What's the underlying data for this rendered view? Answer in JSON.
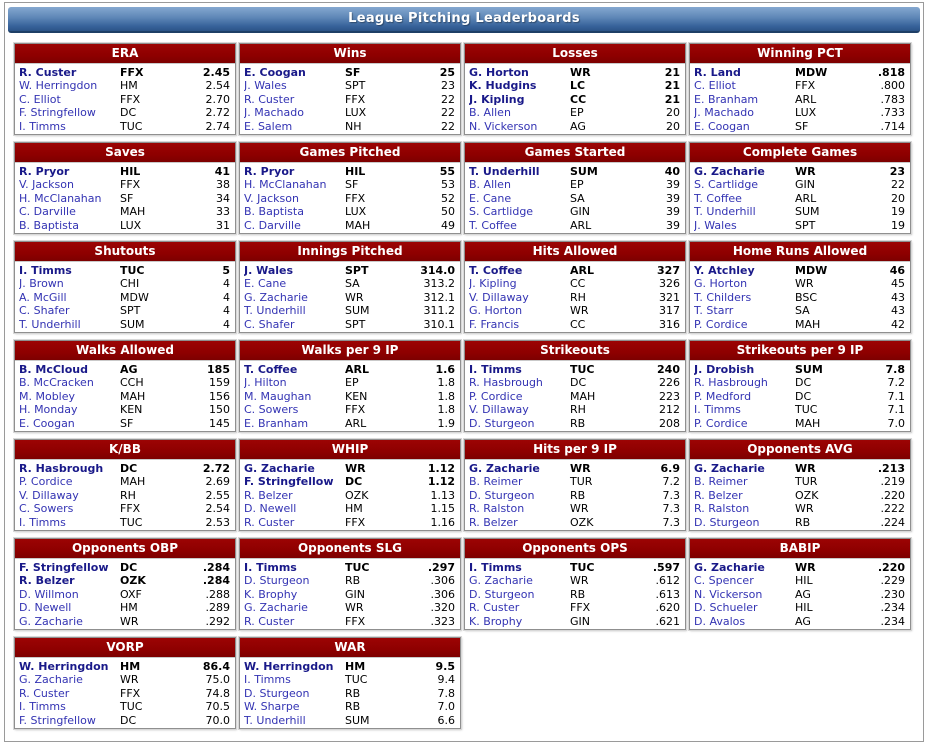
{
  "title": "League Pitching Leaderboards",
  "boards": [
    {
      "title": "ERA",
      "rows": [
        {
          "name": "R. Custer",
          "team": "FFX",
          "value": "2.45",
          "bold": true
        },
        {
          "name": "W. Herringdon",
          "team": "HM",
          "value": "2.54",
          "bold": false
        },
        {
          "name": "C. Elliot",
          "team": "FFX",
          "value": "2.70",
          "bold": false
        },
        {
          "name": "F. Stringfellow",
          "team": "DC",
          "value": "2.72",
          "bold": false
        },
        {
          "name": "I. Timms",
          "team": "TUC",
          "value": "2.74",
          "bold": false
        }
      ]
    },
    {
      "title": "Wins",
      "rows": [
        {
          "name": "E. Coogan",
          "team": "SF",
          "value": "25",
          "bold": true
        },
        {
          "name": "J. Wales",
          "team": "SPT",
          "value": "23",
          "bold": false
        },
        {
          "name": "R. Custer",
          "team": "FFX",
          "value": "22",
          "bold": false
        },
        {
          "name": "J. Machado",
          "team": "LUX",
          "value": "22",
          "bold": false
        },
        {
          "name": "E. Salem",
          "team": "NH",
          "value": "22",
          "bold": false
        }
      ]
    },
    {
      "title": "Losses",
      "rows": [
        {
          "name": "G. Horton",
          "team": "WR",
          "value": "21",
          "bold": true
        },
        {
          "name": "K. Hudgins",
          "team": "LC",
          "value": "21",
          "bold": true
        },
        {
          "name": "J. Kipling",
          "team": "CC",
          "value": "21",
          "bold": true
        },
        {
          "name": "B. Allen",
          "team": "EP",
          "value": "20",
          "bold": false
        },
        {
          "name": "N. Vickerson",
          "team": "AG",
          "value": "20",
          "bold": false
        }
      ]
    },
    {
      "title": "Winning PCT",
      "rows": [
        {
          "name": "R. Land",
          "team": "MDW",
          "value": ".818",
          "bold": true
        },
        {
          "name": "C. Elliot",
          "team": "FFX",
          "value": ".800",
          "bold": false
        },
        {
          "name": "E. Branham",
          "team": "ARL",
          "value": ".783",
          "bold": false
        },
        {
          "name": "J. Machado",
          "team": "LUX",
          "value": ".733",
          "bold": false
        },
        {
          "name": "E. Coogan",
          "team": "SF",
          "value": ".714",
          "bold": false
        }
      ]
    },
    {
      "title": "Saves",
      "rows": [
        {
          "name": "R. Pryor",
          "team": "HIL",
          "value": "41",
          "bold": true
        },
        {
          "name": "V. Jackson",
          "team": "FFX",
          "value": "38",
          "bold": false
        },
        {
          "name": "H. McClanahan",
          "team": "SF",
          "value": "34",
          "bold": false
        },
        {
          "name": "C. Darville",
          "team": "MAH",
          "value": "33",
          "bold": false
        },
        {
          "name": "B. Baptista",
          "team": "LUX",
          "value": "31",
          "bold": false
        }
      ]
    },
    {
      "title": "Games Pitched",
      "rows": [
        {
          "name": "R. Pryor",
          "team": "HIL",
          "value": "55",
          "bold": true
        },
        {
          "name": "H. McClanahan",
          "team": "SF",
          "value": "53",
          "bold": false
        },
        {
          "name": "V. Jackson",
          "team": "FFX",
          "value": "52",
          "bold": false
        },
        {
          "name": "B. Baptista",
          "team": "LUX",
          "value": "50",
          "bold": false
        },
        {
          "name": "C. Darville",
          "team": "MAH",
          "value": "49",
          "bold": false
        }
      ]
    },
    {
      "title": "Games Started",
      "rows": [
        {
          "name": "T. Underhill",
          "team": "SUM",
          "value": "40",
          "bold": true
        },
        {
          "name": "B. Allen",
          "team": "EP",
          "value": "39",
          "bold": false
        },
        {
          "name": "E. Cane",
          "team": "SA",
          "value": "39",
          "bold": false
        },
        {
          "name": "S. Cartlidge",
          "team": "GIN",
          "value": "39",
          "bold": false
        },
        {
          "name": "T. Coffee",
          "team": "ARL",
          "value": "39",
          "bold": false
        }
      ]
    },
    {
      "title": "Complete Games",
      "rows": [
        {
          "name": "G. Zacharie",
          "team": "WR",
          "value": "23",
          "bold": true
        },
        {
          "name": "S. Cartlidge",
          "team": "GIN",
          "value": "22",
          "bold": false
        },
        {
          "name": "T. Coffee",
          "team": "ARL",
          "value": "20",
          "bold": false
        },
        {
          "name": "T. Underhill",
          "team": "SUM",
          "value": "19",
          "bold": false
        },
        {
          "name": "J. Wales",
          "team": "SPT",
          "value": "19",
          "bold": false
        }
      ]
    },
    {
      "title": "Shutouts",
      "rows": [
        {
          "name": "I. Timms",
          "team": "TUC",
          "value": "5",
          "bold": true
        },
        {
          "name": "J. Brown",
          "team": "CHI",
          "value": "4",
          "bold": false
        },
        {
          "name": "A. McGill",
          "team": "MDW",
          "value": "4",
          "bold": false
        },
        {
          "name": "C. Shafer",
          "team": "SPT",
          "value": "4",
          "bold": false
        },
        {
          "name": "T. Underhill",
          "team": "SUM",
          "value": "4",
          "bold": false
        }
      ]
    },
    {
      "title": "Innings Pitched",
      "rows": [
        {
          "name": "J. Wales",
          "team": "SPT",
          "value": "314.0",
          "bold": true
        },
        {
          "name": "E. Cane",
          "team": "SA",
          "value": "313.2",
          "bold": false
        },
        {
          "name": "G. Zacharie",
          "team": "WR",
          "value": "312.1",
          "bold": false
        },
        {
          "name": "T. Underhill",
          "team": "SUM",
          "value": "311.2",
          "bold": false
        },
        {
          "name": "C. Shafer",
          "team": "SPT",
          "value": "310.1",
          "bold": false
        }
      ]
    },
    {
      "title": "Hits Allowed",
      "rows": [
        {
          "name": "T. Coffee",
          "team": "ARL",
          "value": "327",
          "bold": true
        },
        {
          "name": "J. Kipling",
          "team": "CC",
          "value": "326",
          "bold": false
        },
        {
          "name": "V. Dillaway",
          "team": "RH",
          "value": "321",
          "bold": false
        },
        {
          "name": "G. Horton",
          "team": "WR",
          "value": "317",
          "bold": false
        },
        {
          "name": "F. Francis",
          "team": "CC",
          "value": "316",
          "bold": false
        }
      ]
    },
    {
      "title": "Home Runs Allowed",
      "rows": [
        {
          "name": "Y. Atchley",
          "team": "MDW",
          "value": "46",
          "bold": true
        },
        {
          "name": "G. Horton",
          "team": "WR",
          "value": "45",
          "bold": false
        },
        {
          "name": "T. Childers",
          "team": "BSC",
          "value": "43",
          "bold": false
        },
        {
          "name": "T. Starr",
          "team": "SA",
          "value": "43",
          "bold": false
        },
        {
          "name": "P. Cordice",
          "team": "MAH",
          "value": "42",
          "bold": false
        }
      ]
    },
    {
      "title": "Walks Allowed",
      "rows": [
        {
          "name": "B. McCloud",
          "team": "AG",
          "value": "185",
          "bold": true
        },
        {
          "name": "B. McCracken",
          "team": "CCH",
          "value": "159",
          "bold": false
        },
        {
          "name": "M. Mobley",
          "team": "MAH",
          "value": "156",
          "bold": false
        },
        {
          "name": "H. Monday",
          "team": "KEN",
          "value": "150",
          "bold": false
        },
        {
          "name": "E. Coogan",
          "team": "SF",
          "value": "145",
          "bold": false
        }
      ]
    },
    {
      "title": "Walks per 9 IP",
      "rows": [
        {
          "name": "T. Coffee",
          "team": "ARL",
          "value": "1.6",
          "bold": true
        },
        {
          "name": "J. Hilton",
          "team": "EP",
          "value": "1.8",
          "bold": false
        },
        {
          "name": "M. Maughan",
          "team": "KEN",
          "value": "1.8",
          "bold": false
        },
        {
          "name": "C. Sowers",
          "team": "FFX",
          "value": "1.8",
          "bold": false
        },
        {
          "name": "E. Branham",
          "team": "ARL",
          "value": "1.9",
          "bold": false
        }
      ]
    },
    {
      "title": "Strikeouts",
      "rows": [
        {
          "name": "I. Timms",
          "team": "TUC",
          "value": "240",
          "bold": true
        },
        {
          "name": "R. Hasbrough",
          "team": "DC",
          "value": "226",
          "bold": false
        },
        {
          "name": "P. Cordice",
          "team": "MAH",
          "value": "223",
          "bold": false
        },
        {
          "name": "V. Dillaway",
          "team": "RH",
          "value": "212",
          "bold": false
        },
        {
          "name": "D. Sturgeon",
          "team": "RB",
          "value": "208",
          "bold": false
        }
      ]
    },
    {
      "title": "Strikeouts per 9 IP",
      "rows": [
        {
          "name": "J. Drobish",
          "team": "SUM",
          "value": "7.8",
          "bold": true
        },
        {
          "name": "R. Hasbrough",
          "team": "DC",
          "value": "7.2",
          "bold": false
        },
        {
          "name": "P. Medford",
          "team": "DC",
          "value": "7.1",
          "bold": false
        },
        {
          "name": "I. Timms",
          "team": "TUC",
          "value": "7.1",
          "bold": false
        },
        {
          "name": "P. Cordice",
          "team": "MAH",
          "value": "7.0",
          "bold": false
        }
      ]
    },
    {
      "title": "K/BB",
      "rows": [
        {
          "name": "R. Hasbrough",
          "team": "DC",
          "value": "2.72",
          "bold": true
        },
        {
          "name": "P. Cordice",
          "team": "MAH",
          "value": "2.69",
          "bold": false
        },
        {
          "name": "V. Dillaway",
          "team": "RH",
          "value": "2.55",
          "bold": false
        },
        {
          "name": "C. Sowers",
          "team": "FFX",
          "value": "2.54",
          "bold": false
        },
        {
          "name": "I. Timms",
          "team": "TUC",
          "value": "2.53",
          "bold": false
        }
      ]
    },
    {
      "title": "WHIP",
      "rows": [
        {
          "name": "G. Zacharie",
          "team": "WR",
          "value": "1.12",
          "bold": true
        },
        {
          "name": "F. Stringfellow",
          "team": "DC",
          "value": "1.12",
          "bold": true
        },
        {
          "name": "R. Belzer",
          "team": "OZK",
          "value": "1.13",
          "bold": false
        },
        {
          "name": "D. Newell",
          "team": "HM",
          "value": "1.15",
          "bold": false
        },
        {
          "name": "R. Custer",
          "team": "FFX",
          "value": "1.16",
          "bold": false
        }
      ]
    },
    {
      "title": "Hits per 9 IP",
      "rows": [
        {
          "name": "G. Zacharie",
          "team": "WR",
          "value": "6.9",
          "bold": true
        },
        {
          "name": "B. Reimer",
          "team": "TUR",
          "value": "7.2",
          "bold": false
        },
        {
          "name": "D. Sturgeon",
          "team": "RB",
          "value": "7.3",
          "bold": false
        },
        {
          "name": "R. Ralston",
          "team": "WR",
          "value": "7.3",
          "bold": false
        },
        {
          "name": "R. Belzer",
          "team": "OZK",
          "value": "7.3",
          "bold": false
        }
      ]
    },
    {
      "title": "Opponents AVG",
      "rows": [
        {
          "name": "G. Zacharie",
          "team": "WR",
          "value": ".213",
          "bold": true
        },
        {
          "name": "B. Reimer",
          "team": "TUR",
          "value": ".219",
          "bold": false
        },
        {
          "name": "R. Belzer",
          "team": "OZK",
          "value": ".220",
          "bold": false
        },
        {
          "name": "R. Ralston",
          "team": "WR",
          "value": ".222",
          "bold": false
        },
        {
          "name": "D. Sturgeon",
          "team": "RB",
          "value": ".224",
          "bold": false
        }
      ]
    },
    {
      "title": "Opponents OBP",
      "rows": [
        {
          "name": "F. Stringfellow",
          "team": "DC",
          "value": ".284",
          "bold": true
        },
        {
          "name": "R. Belzer",
          "team": "OZK",
          "value": ".284",
          "bold": true
        },
        {
          "name": "D. Willmon",
          "team": "OXF",
          "value": ".288",
          "bold": false
        },
        {
          "name": "D. Newell",
          "team": "HM",
          "value": ".289",
          "bold": false
        },
        {
          "name": "G. Zacharie",
          "team": "WR",
          "value": ".292",
          "bold": false
        }
      ]
    },
    {
      "title": "Opponents SLG",
      "rows": [
        {
          "name": "I. Timms",
          "team": "TUC",
          "value": ".297",
          "bold": true
        },
        {
          "name": "D. Sturgeon",
          "team": "RB",
          "value": ".306",
          "bold": false
        },
        {
          "name": "K. Brophy",
          "team": "GIN",
          "value": ".306",
          "bold": false
        },
        {
          "name": "G. Zacharie",
          "team": "WR",
          "value": ".320",
          "bold": false
        },
        {
          "name": "R. Custer",
          "team": "FFX",
          "value": ".323",
          "bold": false
        }
      ]
    },
    {
      "title": "Opponents OPS",
      "rows": [
        {
          "name": "I. Timms",
          "team": "TUC",
          "value": ".597",
          "bold": true
        },
        {
          "name": "G. Zacharie",
          "team": "WR",
          "value": ".612",
          "bold": false
        },
        {
          "name": "D. Sturgeon",
          "team": "RB",
          "value": ".613",
          "bold": false
        },
        {
          "name": "R. Custer",
          "team": "FFX",
          "value": ".620",
          "bold": false
        },
        {
          "name": "K. Brophy",
          "team": "GIN",
          "value": ".621",
          "bold": false
        }
      ]
    },
    {
      "title": "BABIP",
      "rows": [
        {
          "name": "G. Zacharie",
          "team": "WR",
          "value": ".220",
          "bold": true
        },
        {
          "name": "C. Spencer",
          "team": "HIL",
          "value": ".229",
          "bold": false
        },
        {
          "name": "N. Vickerson",
          "team": "AG",
          "value": ".230",
          "bold": false
        },
        {
          "name": "D. Schueler",
          "team": "HIL",
          "value": ".234",
          "bold": false
        },
        {
          "name": "D. Avalos",
          "team": "AG",
          "value": ".234",
          "bold": false
        }
      ]
    },
    {
      "title": "VORP",
      "rows": [
        {
          "name": "W. Herringdon",
          "team": "HM",
          "value": "86.4",
          "bold": true
        },
        {
          "name": "G. Zacharie",
          "team": "WR",
          "value": "75.0",
          "bold": false
        },
        {
          "name": "R. Custer",
          "team": "FFX",
          "value": "74.8",
          "bold": false
        },
        {
          "name": "I. Timms",
          "team": "TUC",
          "value": "70.5",
          "bold": false
        },
        {
          "name": "F. Stringfellow",
          "team": "DC",
          "value": "70.0",
          "bold": false
        }
      ]
    },
    {
      "title": "WAR",
      "rows": [
        {
          "name": "W. Herringdon",
          "team": "HM",
          "value": "9.5",
          "bold": true
        },
        {
          "name": "I. Timms",
          "team": "TUC",
          "value": "9.4",
          "bold": false
        },
        {
          "name": "D. Sturgeon",
          "team": "RB",
          "value": "7.8",
          "bold": false
        },
        {
          "name": "W. Sharpe",
          "team": "RB",
          "value": "7.0",
          "bold": false
        },
        {
          "name": "T. Underhill",
          "team": "SUM",
          "value": "6.6",
          "bold": false
        }
      ]
    }
  ],
  "colors": {
    "header_red": "#8e0000",
    "title_bar_blue_top": "#85a8d0",
    "title_bar_blue_bottom": "#2b5387",
    "player_link_blue": "#3333b3",
    "leader_navy": "#191989"
  }
}
